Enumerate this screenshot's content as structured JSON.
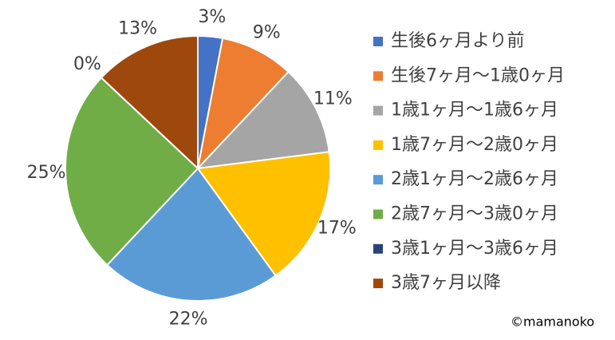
{
  "chart_data": {
    "type": "pie",
    "categories": [
      "生後6ヶ月より前",
      "生後7ヶ月〜1歳0ヶ月",
      "1歳1ヶ月〜1歳6ヶ月",
      "1歳7ヶ月〜2歳0ヶ月",
      "2歳1ヶ月〜2歳6ヶ月",
      "2歳7ヶ月〜3歳0ヶ月",
      "3歳1ヶ月〜3歳6ヶ月",
      "3歳7ヶ月以降"
    ],
    "values": [
      3,
      9,
      11,
      17,
      22,
      25,
      0,
      13
    ],
    "value_labels": [
      "3%",
      "9%",
      "11%",
      "17%",
      "22%",
      "25%",
      "0%",
      "13%"
    ],
    "colors": [
      "#4472c4",
      "#ed7d31",
      "#a5a5a5",
      "#ffc000",
      "#5b9bd5",
      "#70ad47",
      "#264478",
      "#9e480e"
    ],
    "legend": "right",
    "source": "©mamanoko"
  }
}
